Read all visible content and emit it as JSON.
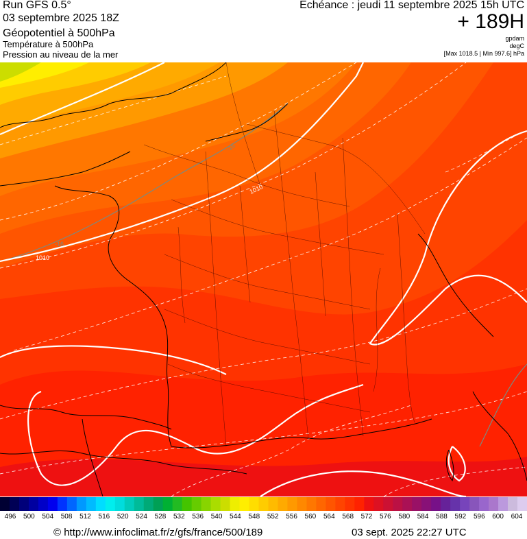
{
  "header": {
    "run_title": "Run GFS 0.5°",
    "run_date": "03 septembre 2025 18Z",
    "param_main": "Géopotentiel à 500hPa",
    "param_2": "Température à 500hPa",
    "param_3": "Pression au niveau de la mer",
    "echeance": "Echéance : jeudi 11 septembre 2025 15h UTC",
    "horizon": "+ 189H",
    "unit_1": "gpdam",
    "unit_2": "degC",
    "unit_3": "[Max 1018.5 | Min 997.6] hPa"
  },
  "map": {
    "region": "France",
    "isobar_labels": [
      "1010",
      "1010"
    ],
    "temperature_labels": [
      "-16",
      "-16"
    ],
    "colors": {
      "isobar": "#ffffff",
      "temperature_isotherm": "#7a8a80",
      "coastline": "#000000"
    }
  },
  "colorbar": {
    "labels": [
      "496",
      "500",
      "504",
      "508",
      "512",
      "516",
      "520",
      "524",
      "528",
      "532",
      "536",
      "540",
      "544",
      "548",
      "552",
      "556",
      "560",
      "564",
      "568",
      "572",
      "576",
      "580",
      "584",
      "588",
      "592",
      "596",
      "600",
      "604"
    ],
    "colors": [
      "#000033",
      "#000055",
      "#00007a",
      "#0000a0",
      "#0000c8",
      "#0000ee",
      "#0033ff",
      "#0066ff",
      "#0099ff",
      "#00bbff",
      "#00ddff",
      "#00eeee",
      "#00dddd",
      "#00ccbb",
      "#00bb99",
      "#00aa77",
      "#00a055",
      "#00b033",
      "#22bb22",
      "#44c400",
      "#66cc00",
      "#88d400",
      "#aadd00",
      "#ccdd00",
      "#eeee00",
      "#ffee00",
      "#ffdd00",
      "#ffcc00",
      "#ffbb00",
      "#ffaa00",
      "#ff9900",
      "#ff8800",
      "#ff7700",
      "#ff6600",
      "#ff5500",
      "#ff4400",
      "#ff3300",
      "#ff2200",
      "#ee1111",
      "#dd1122",
      "#cc1133",
      "#bb1144",
      "#aa1155",
      "#991166",
      "#881177",
      "#771188",
      "#662299",
      "#6633aa",
      "#7744bb",
      "#8855bb",
      "#9966cc",
      "#aa77cc",
      "#bb99dd",
      "#ccbbdd",
      "#ddccee"
    ]
  },
  "footer": {
    "url": "© http://www.infoclimat.fr/z/gfs/france/500/189",
    "generated": "03 sept. 2025 22:27 UTC"
  }
}
